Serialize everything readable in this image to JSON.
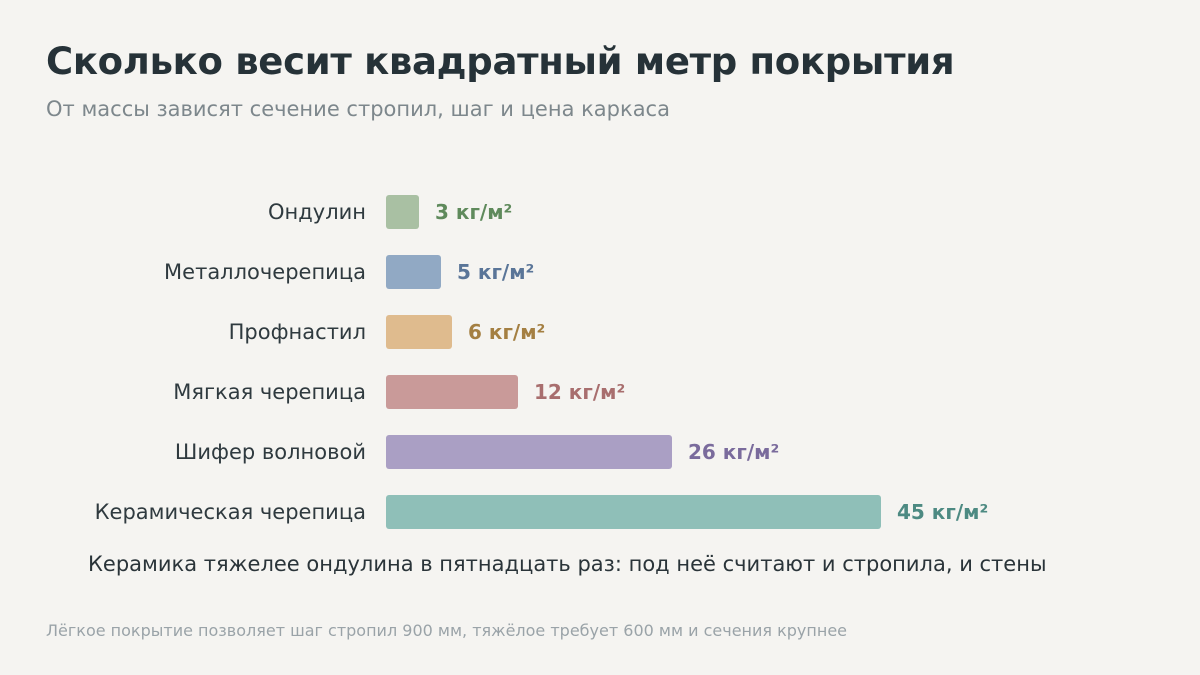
{
  "header": {
    "title": "Сколько весит квадратный метр покрытия",
    "subtitle": "От массы зависят сечение стропил, шаг и цена каркаса"
  },
  "chart_data": {
    "type": "bar",
    "orientation": "horizontal",
    "categories": [
      "Ондулин",
      "Металлочерепица",
      "Профнастил",
      "Мягкая черепица",
      "Шифер волновой",
      "Керамическая черепица"
    ],
    "values": [
      3,
      5,
      6,
      12,
      26,
      45
    ],
    "unit": "кг/м²",
    "value_labels": [
      "3 кг/м²",
      "5 кг/м²",
      "6 кг/м²",
      "12 кг/м²",
      "26 кг/м²",
      "45 кг/м²"
    ],
    "bar_colors": [
      "#a9c0a3",
      "#91a9c4",
      "#dfbb8e",
      "#c99a99",
      "#aa9fc4",
      "#8fbfb8"
    ],
    "label_colors": [
      "#5f8a5c",
      "#5a7598",
      "#a47f42",
      "#a86e6e",
      "#7a6b9c",
      "#4d8a82"
    ],
    "xlim": [
      0,
      45
    ],
    "grid": false,
    "annotation": "Керамика тяжелее ондулина в пятнадцать раз: под неё считают и стропила, и стены"
  },
  "footer": {
    "note": "Лёгкое покрытие позволяет шаг стропил 900 мм, тяжёлое требует 600 мм и сечения крупнее"
  }
}
